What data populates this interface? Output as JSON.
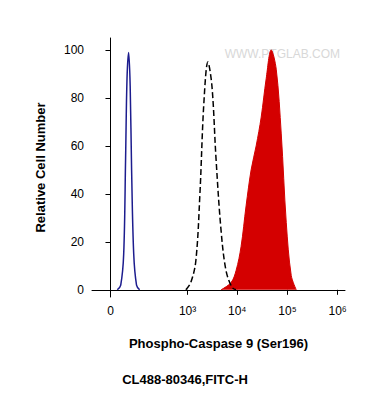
{
  "chart_data": {
    "type": "histogram",
    "xlabel": "Phospho-Caspase 9 (Ser196)",
    "caption": "CL488-80346,FITC-H",
    "ylabel": "Relative Cell Number",
    "annotations": [
      "WWW.PTGLAB.COM"
    ],
    "xlim": [
      -40,
      1400000
    ],
    "xticks": [
      0,
      {
        "value": 1000,
        "label": "10³"
      },
      {
        "value": 10000,
        "label": "10⁴"
      },
      {
        "value": 100000,
        "label": "10⁵"
      },
      {
        "value": 1000000,
        "label": "10⁶"
      }
    ],
    "ylim": [
      -3,
      105
    ],
    "yticks": [
      0,
      20,
      40,
      60,
      80,
      100
    ],
    "grid": false,
    "series": [
      {
        "type": "line",
        "color": "#1c1c8e",
        "line_style": "solid",
        "x": [
          11,
          18,
          25,
          30,
          34,
          39,
          44,
          49,
          57,
          69,
          84
        ],
        "values": [
          0,
          2,
          15,
          55,
          88,
          99,
          85,
          50,
          15,
          2,
          0
        ]
      },
      {
        "type": "line",
        "color": "#000000",
        "line_style": "dashed",
        "x": [
          920,
          1160,
          1470,
          1780,
          2140,
          2580,
          3110,
          3750,
          4730,
          5960,
          7860,
          9460
        ],
        "values": [
          0,
          3,
          12,
          40,
          78,
          95,
          85,
          55,
          25,
          8,
          1,
          0
        ]
      },
      {
        "type": "area",
        "color": "#d40000",
        "line_style": "solid",
        "x": [
          4730,
          7500,
          9460,
          11900,
          15000,
          18900,
          23800,
          30000,
          37700,
          47500,
          59800,
          75300,
          94800,
          119000,
          150000
        ],
        "values": [
          0,
          3,
          8,
          18,
          35,
          50,
          60,
          72,
          88,
          100,
          92,
          65,
          28,
          6,
          0
        ]
      }
    ]
  }
}
